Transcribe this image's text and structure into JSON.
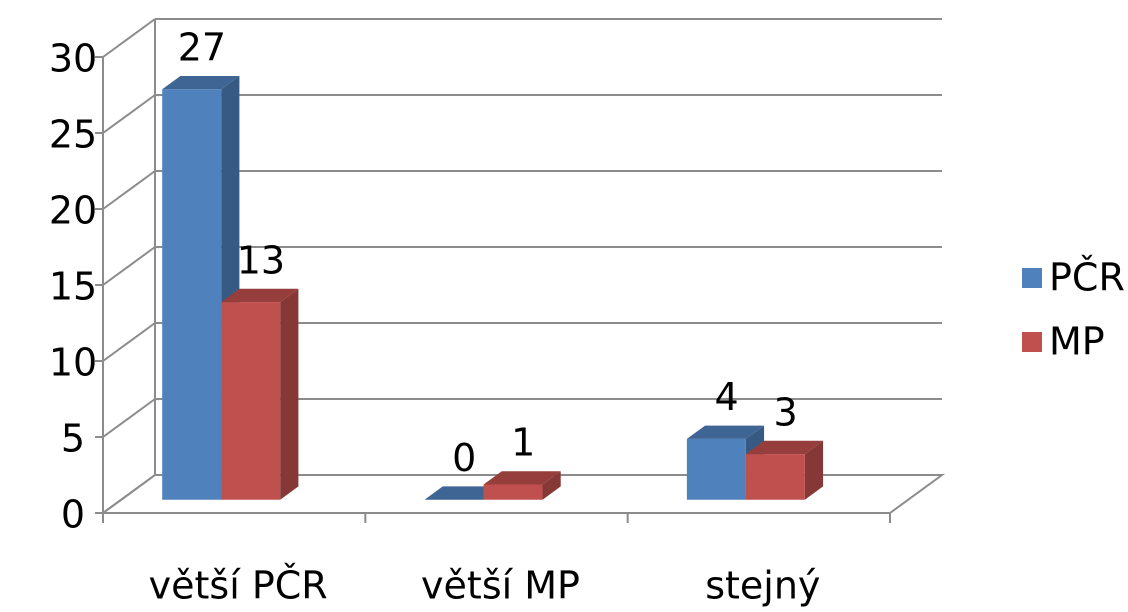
{
  "chart_data": {
    "type": "bar3d",
    "categories": [
      "větší PČR",
      "větší MP",
      "stejný"
    ],
    "series": [
      {
        "name": "PČR",
        "color": "#4f81bd",
        "values": [
          27,
          0,
          4
        ]
      },
      {
        "name": "MP",
        "color": "#c0504d",
        "values": [
          13,
          1,
          3
        ]
      }
    ],
    "ylim": [
      0,
      30
    ],
    "yticks": [
      0,
      5,
      10,
      15,
      20,
      25,
      30
    ],
    "grid": true,
    "legend": "right"
  }
}
